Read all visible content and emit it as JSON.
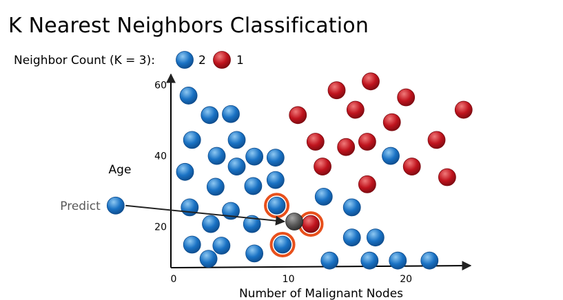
{
  "title": "K Nearest Neighbors Classification",
  "legend": {
    "prefix": "Neighbor Count (K = 3):",
    "items": [
      {
        "class": "blue",
        "count": "2"
      },
      {
        "class": "red",
        "count": "1"
      }
    ]
  },
  "labels": {
    "predict": "Predict"
  },
  "colors": {
    "blue_light": "#8ec8f2",
    "blue": "#1a72c4",
    "blue_dark": "#0d4a8a",
    "red_light": "#f07a7a",
    "red": "#c0141e",
    "red_dark": "#7a0a10",
    "gray_light": "#a6a6a6",
    "gray_dark": "#2b2b2b",
    "highlight": "#e8501c"
  },
  "chart_data": {
    "type": "scatter",
    "xlabel": "Number of Malignant Nodes",
    "ylabel": "Age",
    "x_ticks": [
      0,
      10,
      20
    ],
    "y_ticks": [
      20,
      40,
      60
    ],
    "xlim": [
      0,
      25.5
    ],
    "ylim": [
      8.5,
      63
    ],
    "series": [
      {
        "class": "blue",
        "points": [
          [
            1.5,
            57
          ],
          [
            3.3,
            51.5
          ],
          [
            5.1,
            51.8
          ],
          [
            1.8,
            44.5
          ],
          [
            3.9,
            40
          ],
          [
            5.6,
            44.5
          ],
          [
            7.1,
            39.8
          ],
          [
            8.9,
            39.5
          ],
          [
            1.2,
            35.5
          ],
          [
            5.6,
            37
          ],
          [
            3.8,
            31.3
          ],
          [
            7.0,
            31.5
          ],
          [
            8.9,
            33.2
          ],
          [
            1.6,
            25.5
          ],
          [
            3.4,
            20.8
          ],
          [
            5.1,
            24.5
          ],
          [
            6.9,
            20.8
          ],
          [
            1.8,
            15
          ],
          [
            4.3,
            14.7
          ],
          [
            3.2,
            11
          ],
          [
            7.1,
            12.5
          ],
          [
            9.0,
            26
          ],
          [
            9.5,
            15
          ],
          [
            13.0,
            28.5
          ],
          [
            15.4,
            25.5
          ],
          [
            15.4,
            17
          ],
          [
            17.4,
            17
          ],
          [
            13.5,
            10.5
          ],
          [
            16.9,
            10.5
          ],
          [
            19.3,
            10.5
          ],
          [
            22.0,
            10.5
          ],
          [
            18.7,
            40
          ]
        ]
      },
      {
        "class": "red",
        "points": [
          [
            10.8,
            51.5
          ],
          [
            14.1,
            58.5
          ],
          [
            17.0,
            61
          ],
          [
            20.0,
            56.5
          ],
          [
            15.7,
            53
          ],
          [
            18.8,
            49.5
          ],
          [
            24.9,
            53
          ],
          [
            12.3,
            44
          ],
          [
            14.9,
            42.5
          ],
          [
            16.7,
            44
          ],
          [
            22.6,
            44.5
          ],
          [
            12.9,
            37
          ],
          [
            20.5,
            37
          ],
          [
            23.5,
            34
          ],
          [
            16.7,
            32
          ],
          [
            11.9,
            20.8
          ]
        ]
      }
    ],
    "query": {
      "x": 10.5,
      "y": 21.5
    },
    "nearest": [
      [
        9.0,
        26
      ],
      [
        9.5,
        15
      ],
      [
        11.9,
        20.8
      ]
    ],
    "predict_source": {
      "x": -4.7,
      "y": 26
    }
  }
}
